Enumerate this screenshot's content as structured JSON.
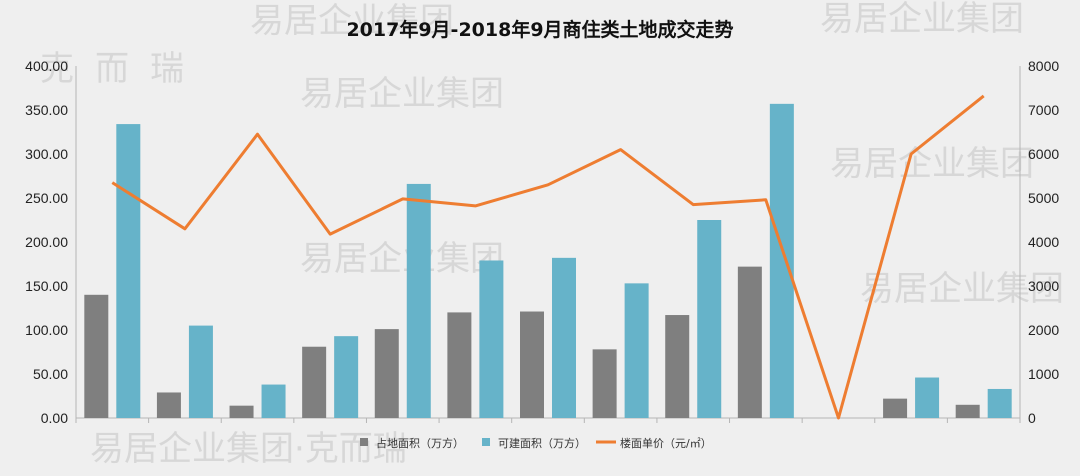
{
  "chart_data": {
    "type": "bar",
    "title": "2017年9月-2018年9月商住类土地成交走势",
    "categories": [
      "",
      "",
      "",
      "",
      "",
      "",
      "",
      "",
      "",
      "",
      "",
      "",
      ""
    ],
    "series": [
      {
        "name": "占地面积（万方）",
        "type": "bar",
        "axis": "left",
        "color": "#7f7f7f",
        "values": [
          140,
          29,
          14,
          81,
          101,
          120,
          121,
          78,
          117,
          172,
          0,
          22,
          15
        ]
      },
      {
        "name": "可建面积（万方）",
        "type": "bar",
        "axis": "left",
        "color": "#66b3c9",
        "values": [
          334,
          105,
          38,
          93,
          266,
          179,
          182,
          153,
          225,
          357,
          0,
          46,
          33
        ]
      },
      {
        "name": "楼面单价（元/㎡）",
        "type": "line",
        "axis": "right",
        "color": "#ee7d31",
        "values": [
          5350,
          4300,
          6450,
          4180,
          4980,
          4820,
          5300,
          6100,
          4850,
          4960,
          0,
          6000,
          7320
        ]
      }
    ],
    "y_left": {
      "min": 0,
      "max": 400,
      "step": 50,
      "tick_labels": [
        "0.00",
        "50.00",
        "100.00",
        "150.00",
        "200.00",
        "250.00",
        "300.00",
        "350.00",
        "400.00"
      ]
    },
    "y_right": {
      "min": 0,
      "max": 8000,
      "step": 1000,
      "tick_labels": [
        "0",
        "1000",
        "2000",
        "3000",
        "4000",
        "5000",
        "6000",
        "7000",
        "8000"
      ]
    },
    "grid": false,
    "legend_position": "bottom",
    "watermark_text": [
      "易居企业集团",
      "克",
      "而",
      "瑞",
      "易居企业集团·克而瑞"
    ]
  }
}
